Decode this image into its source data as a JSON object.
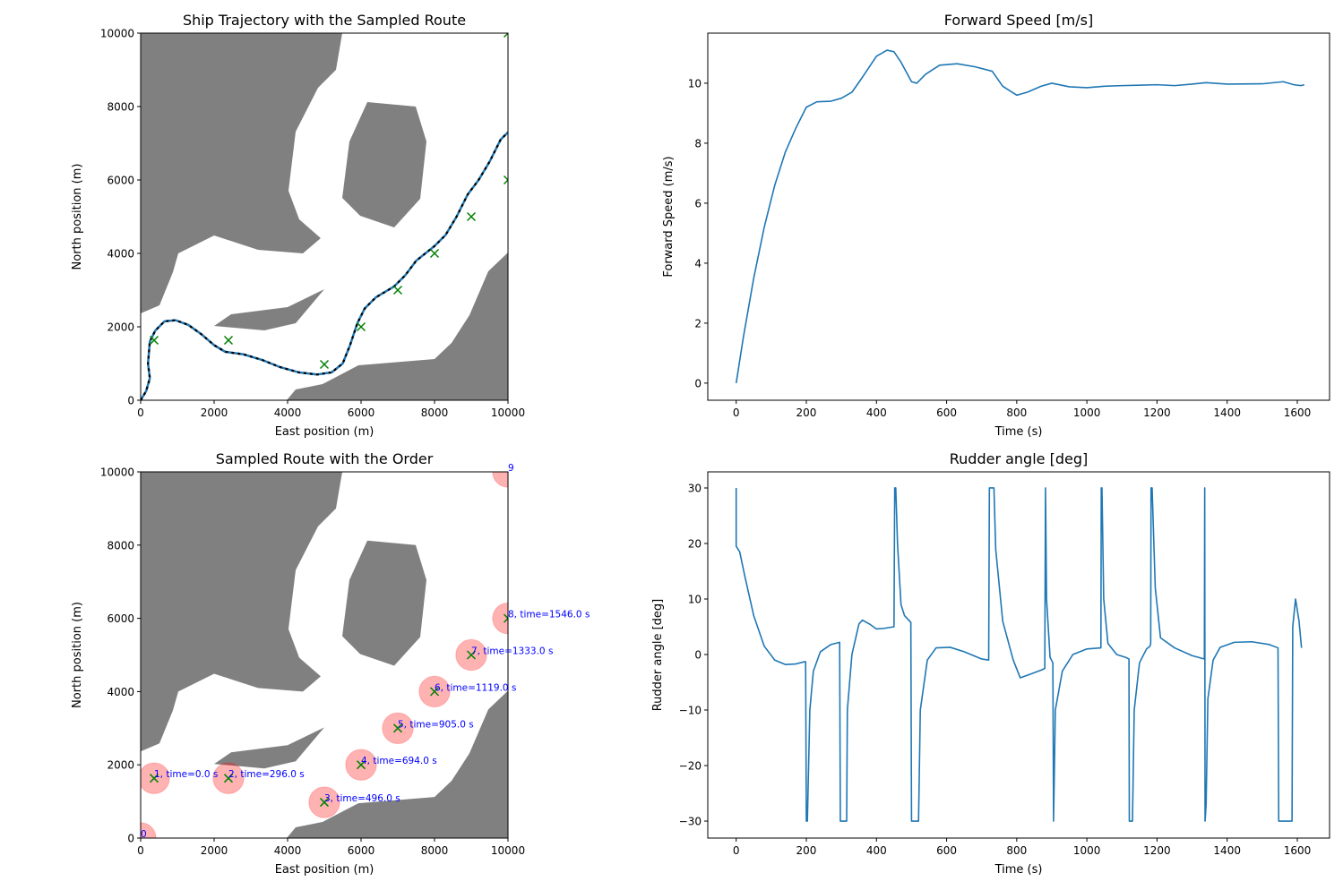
{
  "chart_data": [
    {
      "type": "map",
      "title": "Ship Trajectory with the Sampled Route",
      "xlabel": "East position (m)",
      "ylabel": "North position (m)",
      "xlim": [
        0,
        10000
      ],
      "ylim": [
        0,
        10000
      ],
      "xticks": [
        0,
        2000,
        4000,
        6000,
        8000,
        10000
      ],
      "yticks": [
        0,
        2000,
        4000,
        6000,
        8000,
        10000
      ],
      "obstacle_color": "#808080",
      "obstacles": [
        {
          "x": [
            0,
            5488,
            5317,
            4829,
            4220,
            4024,
            4317,
            4902,
            4415,
            3195,
            2000,
            1024,
            878,
            512,
            0
          ],
          "y": [
            10000,
            10000,
            9000,
            8512,
            7317,
            5707,
            4927,
            4415,
            4000,
            4098,
            4488,
            4000,
            3488,
            2585,
            2366
          ]
        },
        {
          "x": [
            6171,
            7488,
            7780,
            7610,
            6902,
            5976,
            5488,
            5683
          ],
          "y": [
            8122,
            8000,
            7049,
            5488,
            4707,
            5024,
            5512,
            7049
          ]
        },
        {
          "x": [
            2000,
            2463,
            4000,
            5000,
            4220,
            3366
          ],
          "y": [
            2024,
            2341,
            2537,
            3024,
            2098,
            1902
          ]
        },
        {
          "x": [
            3976,
            4220,
            4951,
            5927,
            8000,
            8463,
            8951,
            9463,
            10000,
            10000
          ],
          "y": [
            0,
            293,
            439,
            951,
            1122,
            1561,
            2317,
            3512,
            4024,
            0
          ]
        }
      ],
      "series": [
        {
          "color": "#1f77b4",
          "overlay_color": "#000000",
          "x": [
            0,
            150,
            250,
            200,
            250,
            400,
            650,
            950,
            1300,
            1650,
            2000,
            2300,
            2800,
            3300,
            3800,
            4300,
            4800,
            5200,
            5500,
            5700,
            5900,
            6100,
            6400,
            6900,
            7200,
            7500,
            8000,
            8300,
            8600,
            8900,
            9200,
            9500,
            9800,
            10000
          ],
          "values": [
            0,
            250,
            600,
            1000,
            1600,
            1900,
            2150,
            2180,
            2050,
            1800,
            1500,
            1320,
            1250,
            1100,
            900,
            760,
            700,
            760,
            1000,
            1500,
            2100,
            2500,
            2800,
            3100,
            3400,
            3800,
            4200,
            4500,
            5000,
            5600,
            6000,
            6500,
            7100,
            7300
          ]
        }
      ],
      "waypoints": {
        "color": "#008000",
        "x": [
          366,
          2390,
          5000,
          6000,
          7000,
          8000,
          9000,
          10000,
          10000
        ],
        "y": [
          1634,
          1634,
          976,
          2000,
          3000,
          4000,
          5000,
          6000,
          10000
        ]
      }
    },
    {
      "type": "line",
      "title": "Forward Speed [m/s]",
      "xlabel": "Time (s)",
      "ylabel": "Forward Speed (m/s)",
      "xlim": [
        -81,
        1692
      ],
      "ylim": [
        -0.57,
        11.67
      ],
      "xticks": [
        0,
        200,
        400,
        600,
        800,
        1000,
        1200,
        1400,
        1600
      ],
      "yticks": [
        0,
        2,
        4,
        6,
        8,
        10
      ],
      "series": [
        {
          "color": "#1f77b4",
          "x": [
            0,
            20,
            50,
            80,
            110,
            140,
            170,
            200,
            230,
            270,
            300,
            330,
            360,
            400,
            430,
            450,
            470,
            500,
            515,
            540,
            580,
            630,
            680,
            730,
            760,
            800,
            830,
            870,
            900,
            950,
            1000,
            1050,
            1100,
            1200,
            1250,
            1300,
            1340,
            1400,
            1500,
            1560,
            1590,
            1610,
            1620
          ],
          "values": [
            0,
            1.5,
            3.5,
            5.2,
            6.6,
            7.7,
            8.5,
            9.2,
            9.38,
            9.4,
            9.5,
            9.7,
            10.2,
            10.9,
            11.1,
            11.05,
            10.7,
            10.05,
            10.0,
            10.3,
            10.6,
            10.65,
            10.55,
            10.4,
            9.9,
            9.6,
            9.7,
            9.9,
            10.0,
            9.88,
            9.85,
            9.9,
            9.92,
            9.95,
            9.92,
            9.97,
            10.02,
            9.97,
            9.98,
            10.05,
            9.95,
            9.92,
            9.95
          ]
        }
      ]
    },
    {
      "type": "map",
      "title": "Sampled Route with the Order",
      "xlabel": "East position (m)",
      "ylabel": "North position (m)",
      "xlim": [
        0,
        10000
      ],
      "ylim": [
        0,
        10000
      ],
      "xticks": [
        0,
        2000,
        4000,
        6000,
        8000,
        10000
      ],
      "yticks": [
        0,
        2000,
        4000,
        6000,
        8000,
        10000
      ],
      "obstacle_color": "#808080",
      "obstacles": [
        {
          "x": [
            0,
            5488,
            5317,
            4829,
            4220,
            4024,
            4317,
            4902,
            4415,
            3195,
            2000,
            1024,
            878,
            512,
            0
          ],
          "y": [
            10000,
            10000,
            9000,
            8512,
            7317,
            5707,
            4927,
            4415,
            4000,
            4098,
            4488,
            4000,
            3488,
            2585,
            2366
          ]
        },
        {
          "x": [
            6171,
            7488,
            7780,
            7610,
            6902,
            5976,
            5488,
            5683
          ],
          "y": [
            8122,
            8000,
            7049,
            5488,
            4707,
            5024,
            5512,
            7049
          ]
        },
        {
          "x": [
            2000,
            2463,
            4000,
            5000,
            4220,
            3366
          ],
          "y": [
            2024,
            2341,
            2537,
            3024,
            2098,
            1902
          ]
        },
        {
          "x": [
            3976,
            4220,
            4951,
            5927,
            8000,
            8463,
            8951,
            9463,
            10000,
            10000
          ],
          "y": [
            0,
            293,
            439,
            951,
            1122,
            1561,
            2317,
            3512,
            4024,
            0
          ]
        }
      ],
      "circles": {
        "color": "#ff0000",
        "radius": 420,
        "x": [
          0,
          366,
          2390,
          5000,
          6000,
          7000,
          8000,
          9000,
          10000,
          10000
        ],
        "y": [
          0,
          1634,
          1634,
          976,
          2000,
          3000,
          4000,
          5000,
          6000,
          10000
        ]
      },
      "waypoints": {
        "color": "#008000",
        "x": [
          366,
          2390,
          5000,
          6000,
          7000,
          8000,
          9000,
          10000
        ],
        "y": [
          1634,
          1634,
          976,
          2000,
          3000,
          4000,
          5000,
          6000
        ]
      },
      "annotation_color": "#0000ff",
      "annotations": [
        {
          "text": "0",
          "x": 0,
          "y": 0
        },
        {
          "text": "1, time=0.0 s",
          "x": 366,
          "y": 1634
        },
        {
          "text": "2, time=296.0 s",
          "x": 2390,
          "y": 1634
        },
        {
          "text": "3, time=496.0 s",
          "x": 5000,
          "y": 976
        },
        {
          "text": "4, time=694.0 s",
          "x": 6000,
          "y": 2000
        },
        {
          "text": "5, time=905.0 s",
          "x": 7000,
          "y": 3000
        },
        {
          "text": "6, time=1119.0 s",
          "x": 8000,
          "y": 4000
        },
        {
          "text": "7, time=1333.0 s",
          "x": 9000,
          "y": 5000
        },
        {
          "text": "8, time=1546.0 s",
          "x": 10000,
          "y": 6000
        },
        {
          "text": "9",
          "x": 10000,
          "y": 10000
        }
      ]
    },
    {
      "type": "line",
      "title": "Rudder angle [deg]",
      "xlabel": "Time (s)",
      "ylabel": "Rudder angle [deg]",
      "xlim": [
        -81,
        1692
      ],
      "ylim": [
        -33.06,
        32.9
      ],
      "xticks": [
        0,
        200,
        400,
        600,
        800,
        1000,
        1200,
        1400,
        1600
      ],
      "yticks": [
        {
          "value": -30,
          "label": "−30"
        },
        {
          "value": -20,
          "label": "−20"
        },
        {
          "value": -10,
          "label": "−10"
        },
        0,
        10,
        20,
        30
      ],
      "series": [
        {
          "color": "#1f77b4",
          "x": [
            0,
            0,
            10,
            25,
            50,
            80,
            110,
            140,
            170,
            195,
            198,
            200,
            203,
            210,
            220,
            240,
            270,
            295,
            297,
            300,
            315,
            317,
            330,
            350,
            360,
            380,
            400,
            420,
            450,
            452,
            455,
            460,
            470,
            480,
            498,
            500,
            520,
            525,
            545,
            570,
            610,
            650,
            700,
            720,
            722,
            735,
            740,
            760,
            790,
            810,
            840,
            870,
            880,
            882,
            885,
            895,
            903,
            905,
            910,
            930,
            960,
            1000,
            1040,
            1041,
            1043,
            1048,
            1060,
            1085,
            1110,
            1120,
            1121,
            1130,
            1135,
            1150,
            1170,
            1180,
            1182,
            1183,
            1186,
            1195,
            1210,
            1250,
            1300,
            1335,
            1336,
            1337,
            1340,
            1345,
            1360,
            1380,
            1420,
            1470,
            1520,
            1545,
            1547,
            1585,
            1587,
            1595,
            1605,
            1612
          ],
          "values": [
            30,
            19.5,
            18.5,
            14,
            7,
            1.5,
            -1,
            -1.8,
            -1.7,
            -1.3,
            -1.3,
            -30,
            -30,
            -10,
            -3,
            0.5,
            1.8,
            2.2,
            -30,
            -30,
            -30,
            -10,
            0,
            5.5,
            6.2,
            5.5,
            4.6,
            4.7,
            5,
            30,
            30,
            20,
            9,
            7,
            5.8,
            -30,
            -30,
            -10,
            -1,
            1.2,
            1.3,
            0.5,
            -0.8,
            -1,
            30,
            30,
            19,
            6,
            -1,
            -4.2,
            -3.5,
            -2.8,
            -2.5,
            30,
            10,
            -0.5,
            -1.5,
            -30,
            -10,
            -3,
            0,
            1,
            1.2,
            30,
            30,
            10,
            2,
            0,
            -0.5,
            -0.8,
            -30,
            -30,
            -10,
            -1.5,
            1,
            1.5,
            2,
            30,
            30,
            12,
            3,
            1.2,
            -0.2,
            -0.8,
            30,
            -30,
            -27,
            -8,
            -1,
            1.3,
            2.2,
            2.3,
            1.8,
            1.2,
            -30,
            -30,
            5,
            10,
            6,
            1.2
          ]
        }
      ]
    }
  ]
}
